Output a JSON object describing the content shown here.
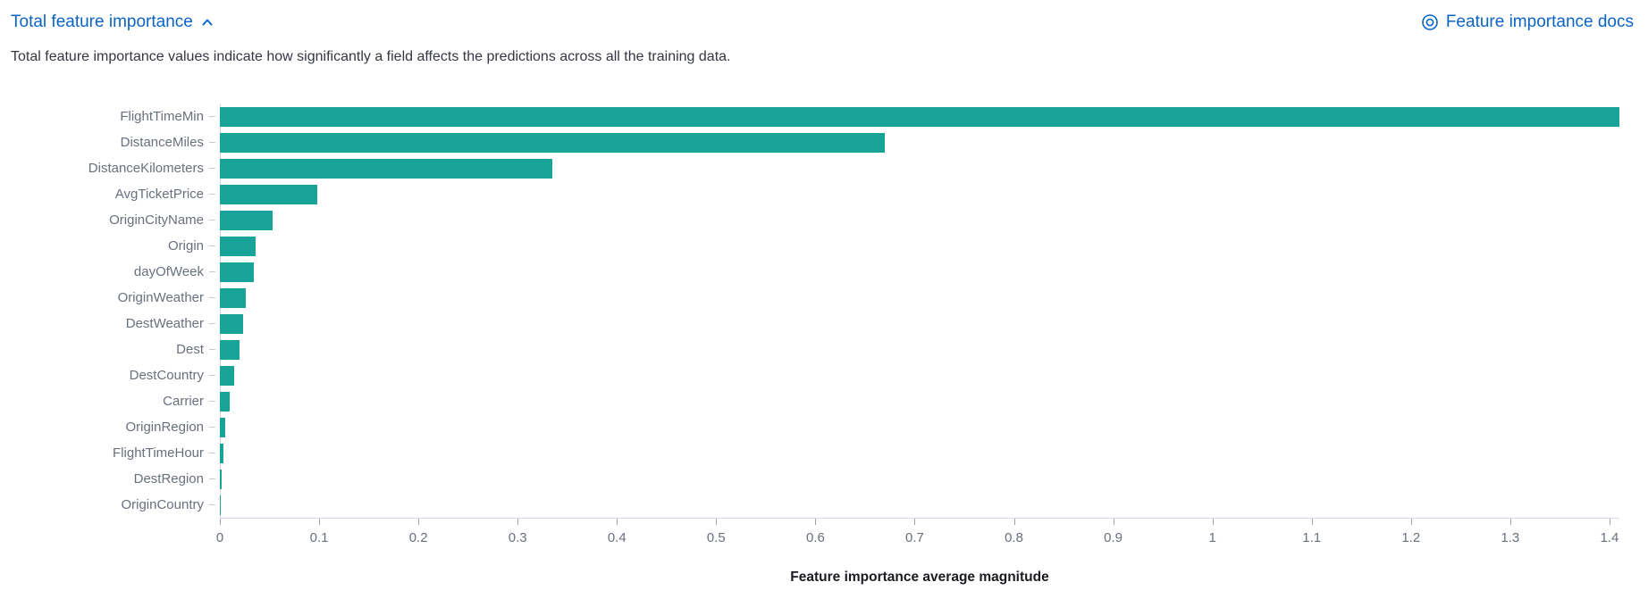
{
  "header": {
    "title": "Total feature importance",
    "collapse_icon": "chevron-up-icon",
    "docs": {
      "label": "Feature importance docs",
      "icon": "documentation-icon"
    }
  },
  "description": "Total feature importance values indicate how significantly a field affects the predictions across all the training data.",
  "chart_data": {
    "type": "bar",
    "orientation": "horizontal",
    "title": "",
    "xlabel": "Feature importance average magnitude",
    "ylabel": "",
    "categories": [
      "FlightTimeMin",
      "DistanceMiles",
      "DistanceKilometers",
      "AvgTicketPrice",
      "OriginCityName",
      "Origin",
      "dayOfWeek",
      "OriginWeather",
      "DestWeather",
      "Dest",
      "DestCountry",
      "Carrier",
      "OriginRegion",
      "FlightTimeHour",
      "DestRegion",
      "OriginCountry"
    ],
    "values": [
      1.41,
      0.67,
      0.335,
      0.098,
      0.053,
      0.036,
      0.034,
      0.026,
      0.023,
      0.02,
      0.014,
      0.01,
      0.005,
      0.0035,
      0.002,
      0.0005
    ],
    "xlim": [
      0,
      1.41
    ],
    "x_ticks": [
      "0",
      "0.1",
      "0.2",
      "0.3",
      "0.4",
      "0.5",
      "0.6",
      "0.7",
      "0.8",
      "0.9",
      "1",
      "1.1",
      "1.2",
      "1.3",
      "1.4"
    ],
    "grid": false,
    "legend_position": "none",
    "bar_color": "#17A398"
  },
  "colors": {
    "link": "#0B64C5",
    "bar": "#17A398",
    "text": "#343741",
    "muted_label": "#69707D",
    "axis_line": "#d3dae6"
  }
}
